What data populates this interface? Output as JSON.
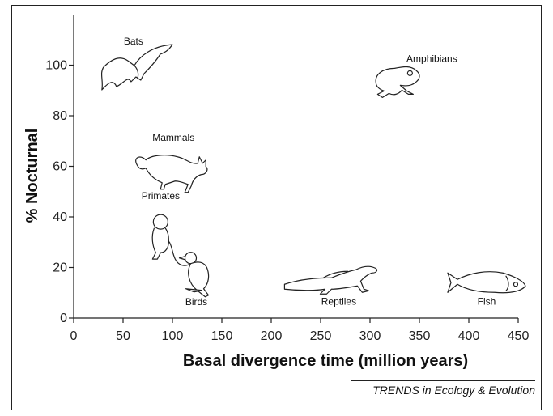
{
  "chart_data": {
    "type": "scatter",
    "title": "",
    "xlabel": "Basal divergence time (million years)",
    "ylabel": "% Nocturnal",
    "xlim": [
      0,
      450
    ],
    "ylim": [
      0,
      120
    ],
    "xticks": [
      0,
      50,
      100,
      150,
      200,
      250,
      300,
      350,
      400,
      450
    ],
    "yticks": [
      0,
      20,
      40,
      60,
      80,
      100
    ],
    "grid": false,
    "points": [
      {
        "label": "Bats",
        "x": 63,
        "y": 96,
        "icon": "bat-icon"
      },
      {
        "label": "Amphibians",
        "x": 329,
        "y": 93,
        "icon": "frog-icon"
      },
      {
        "label": "Mammals",
        "x": 101,
        "y": 58,
        "icon": "cat-icon"
      },
      {
        "label": "Primates",
        "x": 88,
        "y": 31,
        "icon": "monkey-icon"
      },
      {
        "label": "Birds",
        "x": 125,
        "y": 18,
        "icon": "bird-icon"
      },
      {
        "label": "Reptiles",
        "x": 261,
        "y": 14,
        "icon": "lizard-icon"
      },
      {
        "label": "Fish",
        "x": 418,
        "y": 14,
        "icon": "fish-icon"
      }
    ]
  },
  "footer": {
    "source": "TRENDS in Ecology & Evolution"
  }
}
